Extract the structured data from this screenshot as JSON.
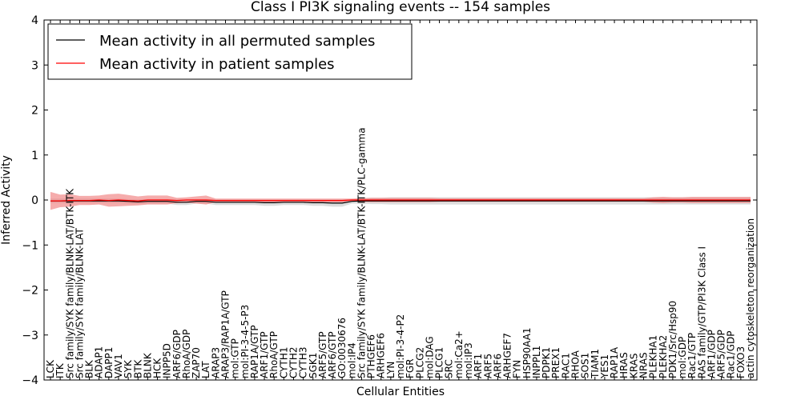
{
  "chart_data": {
    "type": "line",
    "title": "Class I PI3K signaling events -- 154 samples",
    "xlabel": "Cellular Entities",
    "ylabel": "Inferred Activity",
    "ylim": [
      -4,
      4
    ],
    "yticks": [
      4,
      3,
      2,
      1,
      0,
      -1,
      -2,
      -3,
      -4
    ],
    "ytick_labels": [
      "4",
      "3",
      "2",
      "1",
      "0",
      "−1",
      "−2",
      "−3",
      "−4"
    ],
    "grid": false,
    "legend_position": "upper-left",
    "categories": [
      "LCK",
      "ITK",
      "Src family/SYK family/BLNK-LAT/BTK-ITK",
      "Src family/SYK family/BLNK-LAT",
      "BLK",
      "ADAP1",
      "DAPP1",
      "VAV1",
      "SYK",
      "BTK",
      "BLNK",
      "HCK",
      "INPP5D",
      "ARF6/GDP",
      "RhoA/GDP",
      "ZAP70",
      "LAT",
      "ARAP3",
      "ARAP3/RAP1A/GTP",
      "mol:GTP",
      "mol:PI-3-4-5-P3",
      "RAP1A/GTP",
      "ARF1/GTP",
      "RhoA/GTP",
      "CYTH1",
      "CYTH2",
      "CYTH3",
      "SGK1",
      "ARF5/GTP",
      "ARF6/GTP",
      "GO:0030676",
      "mol:IP4",
      "Src family/SYK family/BLNK-LAT/BTK-ITK/PLC-gamma",
      "PTHGEF6",
      "ARHGEF6",
      "LYN",
      "mol:PI-3-4-P2",
      "FGR",
      "PLCG2",
      "mol:DAG",
      "PLCG1",
      "SRC",
      "mol:Ca2+",
      "mol:IP3",
      "ARF1",
      "ARF5",
      "ARF6",
      "ARHGEF7",
      "FYN",
      "HSP90AA1",
      "INPPL1",
      "PDPK1",
      "PREX1",
      "RAC1",
      "RHOA",
      "SOS1",
      "TIAM1",
      "YES1",
      "RAP1A",
      "HRAS",
      "KRAS",
      "NRAS",
      "PLEKHA1",
      "PLEKHA2",
      "PDK1/Src/Hsp90",
      "mol:GDP",
      "Rac1/GTP",
      "RAS family/GTP/PI3K Class I",
      "ARF1/GDP",
      "ARF5/GDP",
      "Rac1/GDP",
      "FOXO3",
      "actin cytoskeleton reorganization"
    ],
    "series": [
      {
        "name": "Mean activity in all permuted samples",
        "color": "#000000",
        "band_color": "#bbbbbb",
        "values": [
          -0.02,
          -0.02,
          -0.02,
          -0.02,
          -0.02,
          -0.02,
          -0.02,
          -0.02,
          -0.03,
          -0.04,
          -0.03,
          -0.03,
          -0.03,
          -0.05,
          -0.05,
          -0.03,
          -0.03,
          -0.05,
          -0.05,
          -0.05,
          -0.05,
          -0.05,
          -0.06,
          -0.06,
          -0.05,
          -0.05,
          -0.05,
          -0.06,
          -0.06,
          -0.07,
          -0.07,
          -0.03,
          -0.02,
          -0.02,
          -0.02,
          -0.02,
          -0.02,
          -0.02,
          -0.02,
          -0.02,
          -0.02,
          -0.02,
          -0.02,
          -0.02,
          -0.02,
          -0.02,
          -0.02,
          -0.02,
          -0.02,
          -0.02,
          -0.02,
          -0.02,
          -0.02,
          -0.02,
          -0.02,
          -0.02,
          -0.02,
          -0.02,
          -0.02,
          -0.02,
          -0.02,
          -0.02,
          -0.02,
          -0.02,
          -0.02,
          -0.02,
          -0.02,
          -0.02,
          -0.02,
          -0.02,
          -0.02,
          -0.02,
          -0.02
        ],
        "band_halfwidth": [
          0.05,
          0.05,
          0.05,
          0.05,
          0.05,
          0.05,
          0.05,
          0.05,
          0.05,
          0.05,
          0.05,
          0.05,
          0.05,
          0.06,
          0.06,
          0.05,
          0.05,
          0.06,
          0.06,
          0.06,
          0.06,
          0.06,
          0.07,
          0.07,
          0.06,
          0.06,
          0.06,
          0.07,
          0.07,
          0.08,
          0.08,
          0.05,
          0.06,
          0.07,
          0.07,
          0.08,
          0.08,
          0.08,
          0.08,
          0.08,
          0.08,
          0.08,
          0.08,
          0.08,
          0.08,
          0.08,
          0.08,
          0.08,
          0.08,
          0.08,
          0.08,
          0.08,
          0.08,
          0.08,
          0.08,
          0.08,
          0.08,
          0.08,
          0.08,
          0.08,
          0.08,
          0.08,
          0.08,
          0.08,
          0.08,
          0.08,
          0.08,
          0.08,
          0.08,
          0.08,
          0.08,
          0.08,
          0.08
        ]
      },
      {
        "name": "Mean activity in patient samples",
        "color": "#ff0000",
        "band_color": "#f08080",
        "values": [
          -0.02,
          -0.02,
          -0.01,
          -0.01,
          -0.01,
          0.0,
          -0.01,
          0.0,
          -0.01,
          -0.02,
          0.0,
          0.0,
          0.0,
          -0.01,
          0.0,
          0.0,
          0.0,
          -0.01,
          -0.01,
          -0.01,
          -0.01,
          -0.01,
          -0.01,
          -0.01,
          -0.01,
          -0.01,
          -0.01,
          -0.01,
          -0.01,
          -0.01,
          -0.01,
          0.0,
          0.0,
          0.0,
          0.0,
          0.0,
          0.0,
          0.0,
          0.0,
          0.0,
          0.0,
          0.0,
          0.0,
          0.0,
          0.0,
          0.0,
          0.0,
          0.0,
          0.0,
          0.0,
          0.0,
          0.0,
          0.0,
          0.0,
          0.0,
          0.0,
          0.0,
          0.0,
          0.0,
          0.0,
          0.0,
          0.0,
          0.0,
          0.0,
          0.0,
          0.0,
          0.0,
          0.0,
          0.0,
          0.0,
          0.0,
          0.0,
          0.0
        ],
        "band_halfwidth": [
          0.2,
          0.14,
          0.14,
          0.1,
          0.1,
          0.1,
          0.14,
          0.14,
          0.12,
          0.1,
          0.1,
          0.1,
          0.1,
          0.06,
          0.06,
          0.08,
          0.1,
          0.04,
          0.04,
          0.04,
          0.04,
          0.04,
          0.04,
          0.04,
          0.04,
          0.04,
          0.04,
          0.04,
          0.04,
          0.04,
          0.04,
          0.03,
          0.04,
          0.05,
          0.05,
          0.05,
          0.05,
          0.05,
          0.05,
          0.05,
          0.04,
          0.04,
          0.04,
          0.04,
          0.04,
          0.04,
          0.04,
          0.04,
          0.04,
          0.04,
          0.04,
          0.04,
          0.04,
          0.04,
          0.04,
          0.04,
          0.04,
          0.04,
          0.04,
          0.04,
          0.04,
          0.04,
          0.06,
          0.07,
          0.06,
          0.06,
          0.07,
          0.07,
          0.07,
          0.07,
          0.07,
          0.07,
          0.07
        ]
      }
    ]
  }
}
